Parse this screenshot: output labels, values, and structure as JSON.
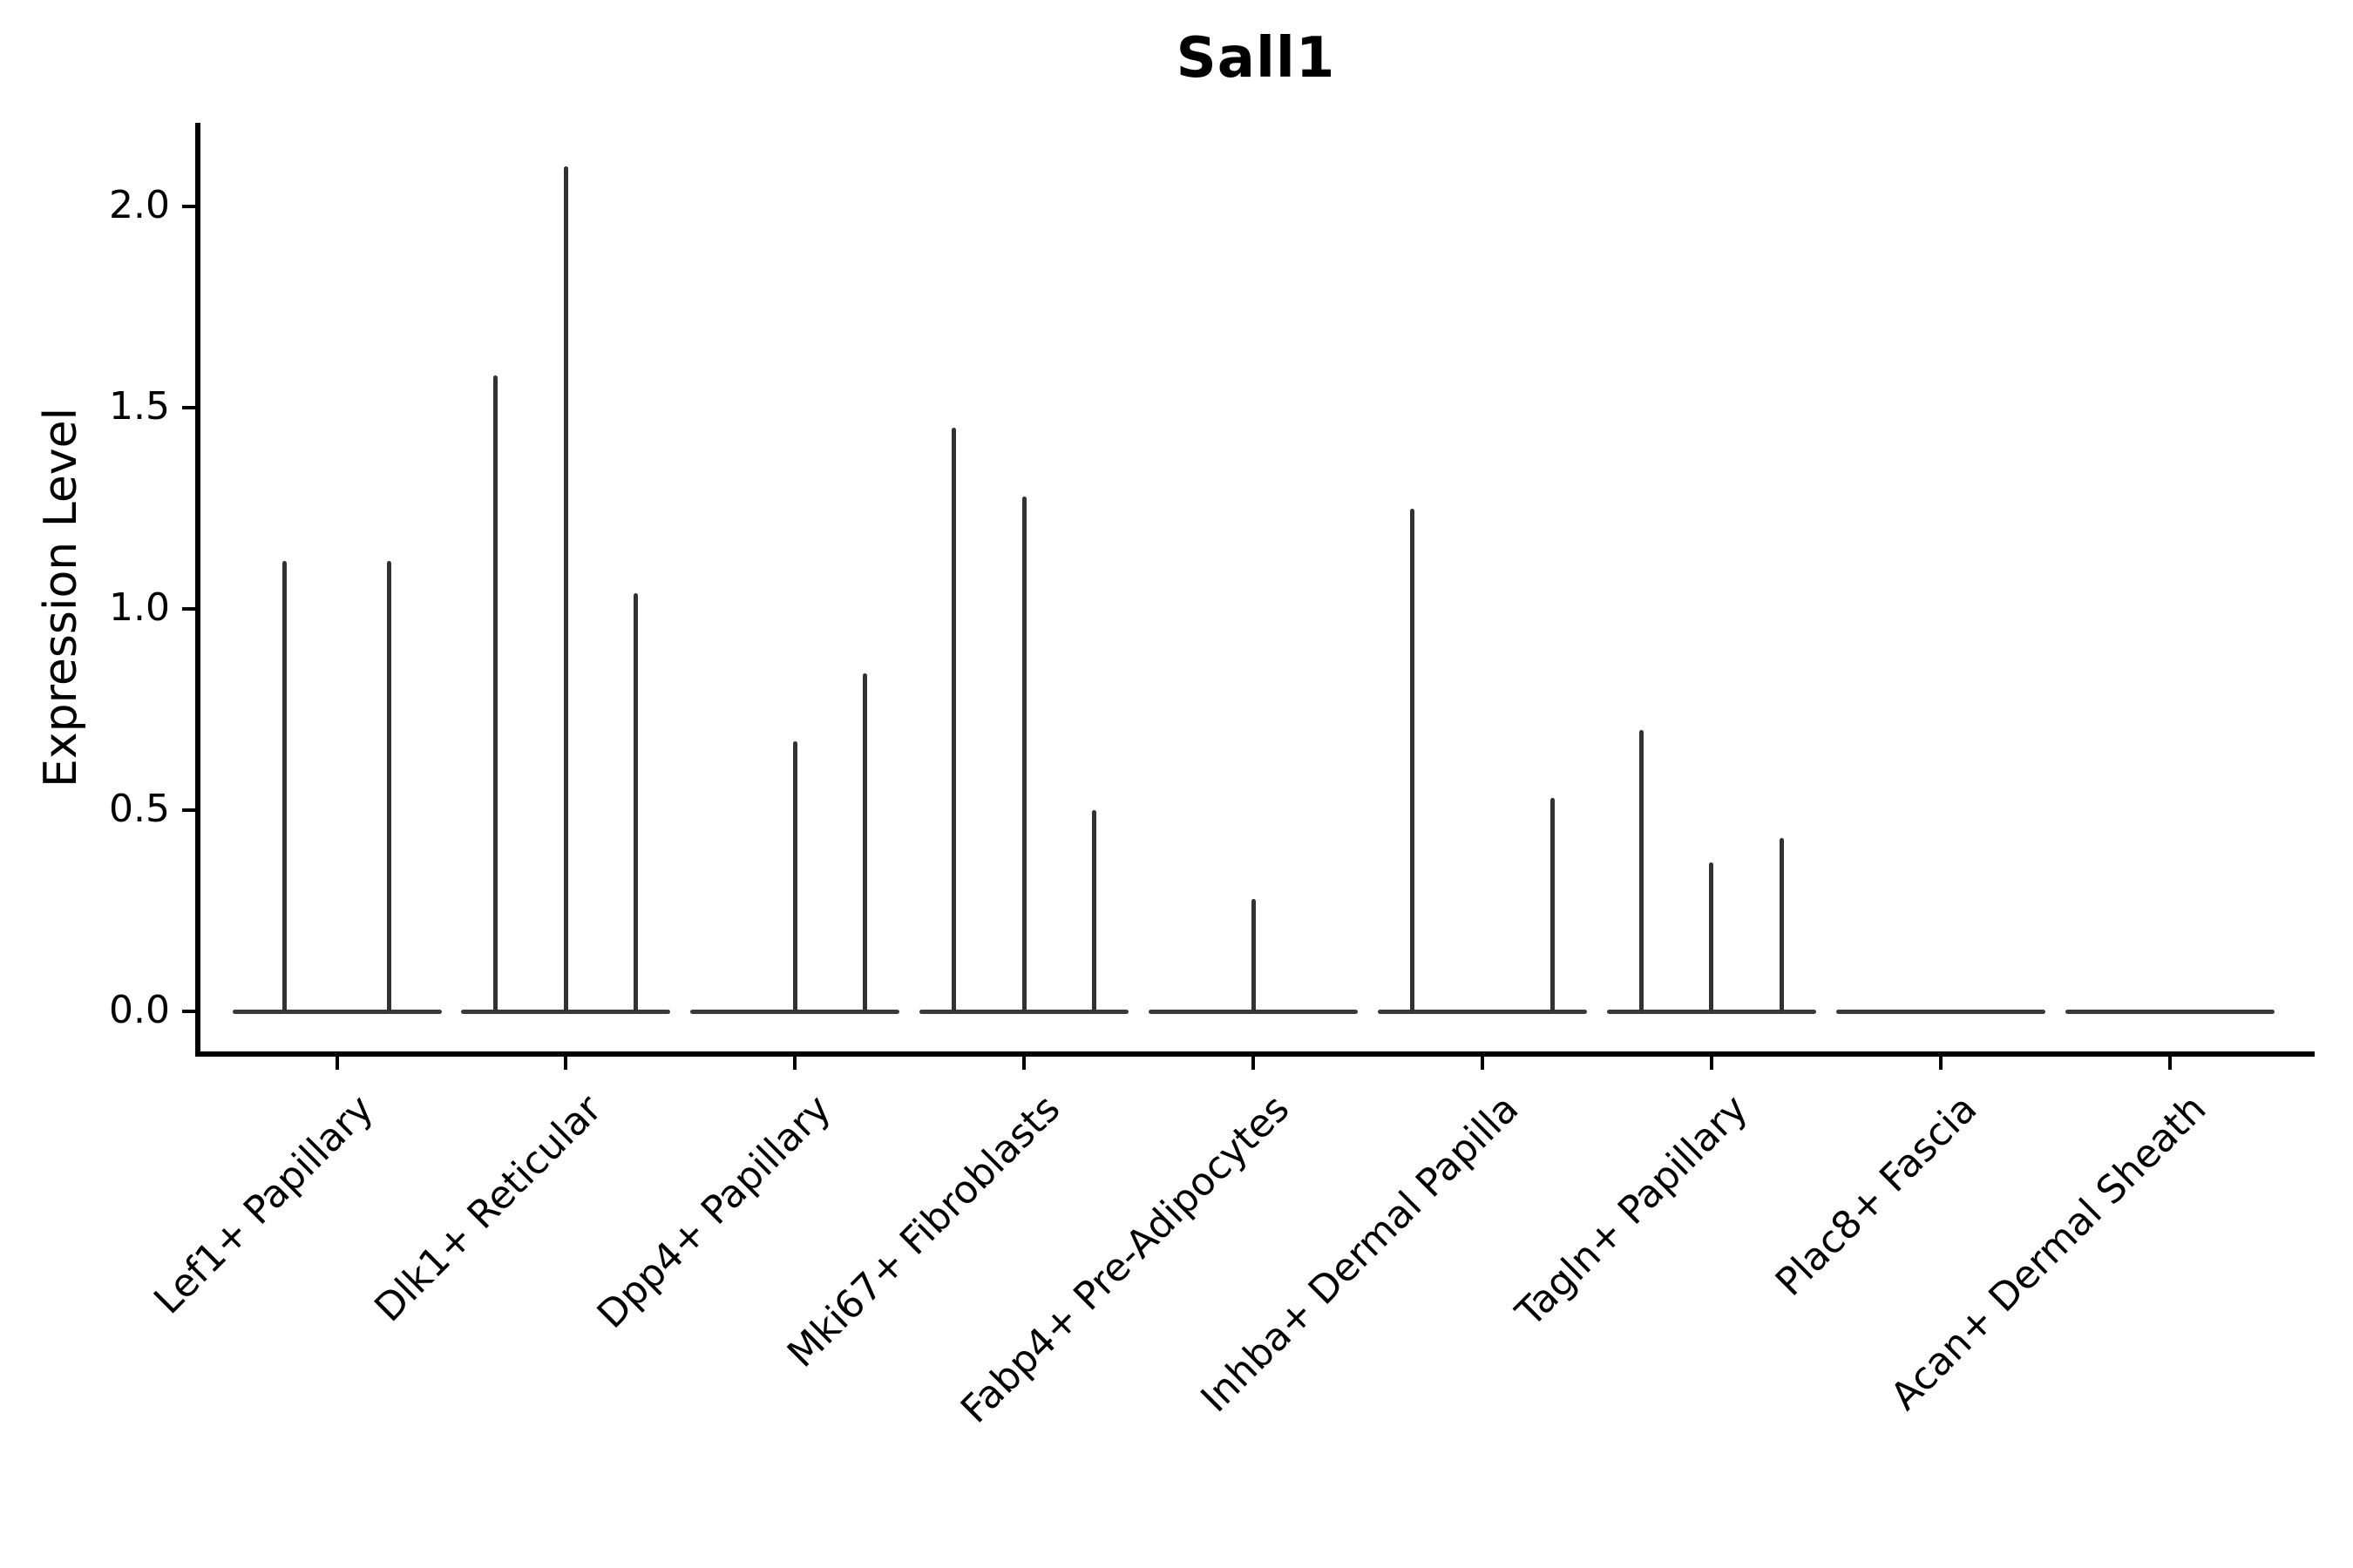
{
  "figure": {
    "title": "Sall1",
    "ylabel": "Expression Level"
  },
  "chart_data": {
    "type": "violin",
    "title": "Sall1",
    "xlabel": "",
    "ylabel": "Expression Level",
    "ylim": [
      -0.11,
      2.21
    ],
    "grid": false,
    "legend": "none",
    "y_ticks": {
      "values": [
        0.0,
        0.5,
        1.0,
        1.5,
        2.0
      ],
      "labels": [
        "0.0",
        "0.5",
        "1.0",
        "1.5",
        "2.0"
      ]
    },
    "note": "Sparse violin plot; each category holds 2-3 near-zero-width violins (spikes = max expression reached, 0 = flat baseline only)",
    "groups": [
      {
        "label": "Lef1+ Papillary",
        "violin_maxima": [
          1.12,
          1.12
        ]
      },
      {
        "label": "Dlk1+ Reticular",
        "violin_maxima": [
          1.58,
          2.1,
          1.04
        ]
      },
      {
        "label": "Dpp4+ Papillary",
        "violin_maxima": [
          0,
          0.67,
          0.84
        ]
      },
      {
        "label": "Mki67+ Fibroblasts",
        "violin_maxima": [
          1.45,
          1.28,
          0.5
        ]
      },
      {
        "label": "Fabp4+ Pre-Adipocytes",
        "violin_maxima": [
          0,
          0.28,
          0
        ]
      },
      {
        "label": "Inhba+ Dermal Papilla",
        "violin_maxima": [
          1.25,
          0,
          0.53
        ]
      },
      {
        "label": "Tagln+ Papillary",
        "violin_maxima": [
          0.7,
          0.37,
          0.43
        ]
      },
      {
        "label": "Plac8+ Fascia",
        "violin_maxima": [
          0,
          0,
          0
        ]
      },
      {
        "label": "Acan+ Dermal Sheath",
        "violin_maxima": [
          0,
          0,
          0
        ]
      }
    ],
    "colors": {
      "violin_line": "#323232",
      "baseline": "#3a3a3a",
      "axis": "#000000",
      "background": "#ffffff"
    }
  }
}
